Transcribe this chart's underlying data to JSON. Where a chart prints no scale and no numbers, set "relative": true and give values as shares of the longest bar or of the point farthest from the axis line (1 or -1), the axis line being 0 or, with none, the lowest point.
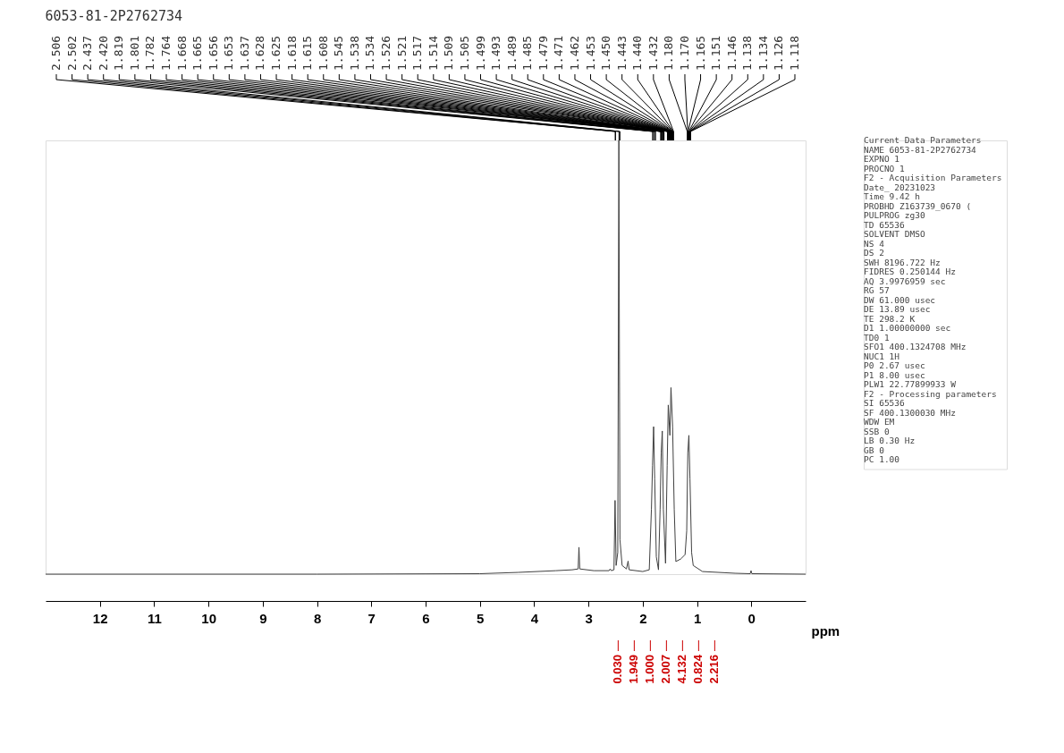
{
  "chart_data": [
    {
      "type": "line",
      "title": "6053-81-2P2762734",
      "xlabel": "ppm",
      "relative": true,
      "xlim": [
        13,
        -1
      ],
      "xticks": [
        0,
        1,
        2,
        3,
        4,
        5,
        6,
        7,
        8,
        9,
        10,
        11,
        12
      ],
      "x": [
        13,
        8,
        5,
        4.3,
        3.6,
        3.3,
        3.19,
        3.175,
        3.16,
        2.9,
        2.62,
        2.6,
        2.58,
        2.53,
        2.51,
        2.49,
        2.46,
        2.44,
        2.42,
        2.38,
        2.3,
        2.27,
        2.25,
        2.0,
        1.88,
        1.84,
        1.82,
        1.8,
        1.78,
        1.75,
        1.71,
        1.68,
        1.66,
        1.64,
        1.62,
        1.58,
        1.55,
        1.53,
        1.5,
        1.48,
        1.45,
        1.42,
        1.39,
        1.3,
        1.22,
        1.19,
        1.17,
        1.15,
        1.13,
        1.1,
        1.07,
        0.9,
        0.3,
        0.02,
        0.005,
        -0.01,
        -1
      ],
      "series": [
        {
          "color": "#404040",
          "values": [
            0,
            0,
            0.001,
            0.004,
            0.008,
            0.01,
            0.012,
            0.062,
            0.012,
            0.008,
            0.008,
            0.012,
            0.008,
            0.01,
            0.17,
            0.02,
            0.05,
            1.0,
            0.08,
            0.02,
            0.012,
            0.03,
            0.01,
            0.006,
            0.01,
            0.15,
            0.25,
            0.34,
            0.22,
            0.04,
            0.01,
            0.15,
            0.28,
            0.33,
            0.15,
            0.025,
            0.25,
            0.39,
            0.32,
            0.43,
            0.34,
            0.15,
            0.029,
            0.035,
            0.045,
            0.1,
            0.28,
            0.32,
            0.22,
            0.05,
            0.02,
            0.006,
            0.002,
            0.001,
            0.008,
            0.001,
            0
          ]
        }
      ],
      "grid": false,
      "legend": false,
      "annotations": [
        {
          "text": "2.506",
          "x": 2.506
        },
        {
          "text": "2.502",
          "x": 2.502
        },
        {
          "text": "2.437",
          "x": 2.437
        },
        {
          "text": "2.420",
          "x": 2.42
        },
        {
          "text": "1.819",
          "x": 1.819
        },
        {
          "text": "1.801",
          "x": 1.801
        },
        {
          "text": "1.782",
          "x": 1.782
        },
        {
          "text": "1.764",
          "x": 1.764
        },
        {
          "text": "1.668",
          "x": 1.668
        },
        {
          "text": "1.665",
          "x": 1.665
        },
        {
          "text": "1.656",
          "x": 1.656
        },
        {
          "text": "1.653",
          "x": 1.653
        },
        {
          "text": "1.637",
          "x": 1.637
        },
        {
          "text": "1.628",
          "x": 1.628
        },
        {
          "text": "1.625",
          "x": 1.625
        },
        {
          "text": "1.618",
          "x": 1.618
        },
        {
          "text": "1.615",
          "x": 1.615
        },
        {
          "text": "1.608",
          "x": 1.608
        },
        {
          "text": "1.545",
          "x": 1.545
        },
        {
          "text": "1.538",
          "x": 1.538
        },
        {
          "text": "1.534",
          "x": 1.534
        },
        {
          "text": "1.526",
          "x": 1.526
        },
        {
          "text": "1.521",
          "x": 1.521
        },
        {
          "text": "1.517",
          "x": 1.517
        },
        {
          "text": "1.514",
          "x": 1.514
        },
        {
          "text": "1.509",
          "x": 1.509
        },
        {
          "text": "1.505",
          "x": 1.505
        },
        {
          "text": "1.499",
          "x": 1.499
        },
        {
          "text": "1.493",
          "x": 1.493
        },
        {
          "text": "1.489",
          "x": 1.489
        },
        {
          "text": "1.485",
          "x": 1.485
        },
        {
          "text": "1.479",
          "x": 1.479
        },
        {
          "text": "1.471",
          "x": 1.471
        },
        {
          "text": "1.462",
          "x": 1.462
        },
        {
          "text": "1.453",
          "x": 1.453
        },
        {
          "text": "1.450",
          "x": 1.45
        },
        {
          "text": "1.443",
          "x": 1.443
        },
        {
          "text": "1.440",
          "x": 1.44
        },
        {
          "text": "1.432",
          "x": 1.432
        },
        {
          "text": "1.180",
          "x": 1.18
        },
        {
          "text": "1.170",
          "x": 1.17
        },
        {
          "text": "1.165",
          "x": 1.165
        },
        {
          "text": "1.151",
          "x": 1.151
        },
        {
          "text": "1.146",
          "x": 1.146
        },
        {
          "text": "1.138",
          "x": 1.138
        },
        {
          "text": "1.134",
          "x": 1.134
        },
        {
          "text": "1.126",
          "x": 1.126
        },
        {
          "text": "1.118",
          "x": 1.118
        },
        "0.030",
        "1.949",
        "1.000",
        "2.007",
        "4.132",
        "0.824",
        "2.216"
      ]
    },
    {
      "type": "other",
      "annotations": [
        "Current Data Parameters",
        "NAME 6053-81-2P2762734",
        "EXPNO 1",
        "PROCNO 1",
        "F2 - Acquisition Parameters",
        "Date_ 20231023",
        "Time 9.42 h",
        "PROBHD Z163739_0670 (",
        "PULPROG zg30",
        "TD 65536",
        "SOLVENT DMSO",
        "NS 4",
        "DS 2",
        "SWH 8196.722 Hz",
        "FIDRES 0.250144 Hz",
        "AQ 3.9976959 sec",
        "RG 57",
        "DW 61.000 usec",
        "DE 13.89 usec",
        "TE 298.2 K",
        "D1 1.00000000 sec",
        "TD0 1",
        "SFO1 400.1324708 MHz",
        "NUC1 1H",
        "P0 2.67 usec",
        "P1 8.00 usec",
        "PLW1 22.77899933 W",
        "F2 - Processing parameters",
        "SI 65536",
        "SF 400.1300030 MHz",
        "WDW EM",
        "SSB 0",
        "LB 0.30 Hz",
        "GB 0",
        "PC 1.00"
      ]
    }
  ]
}
